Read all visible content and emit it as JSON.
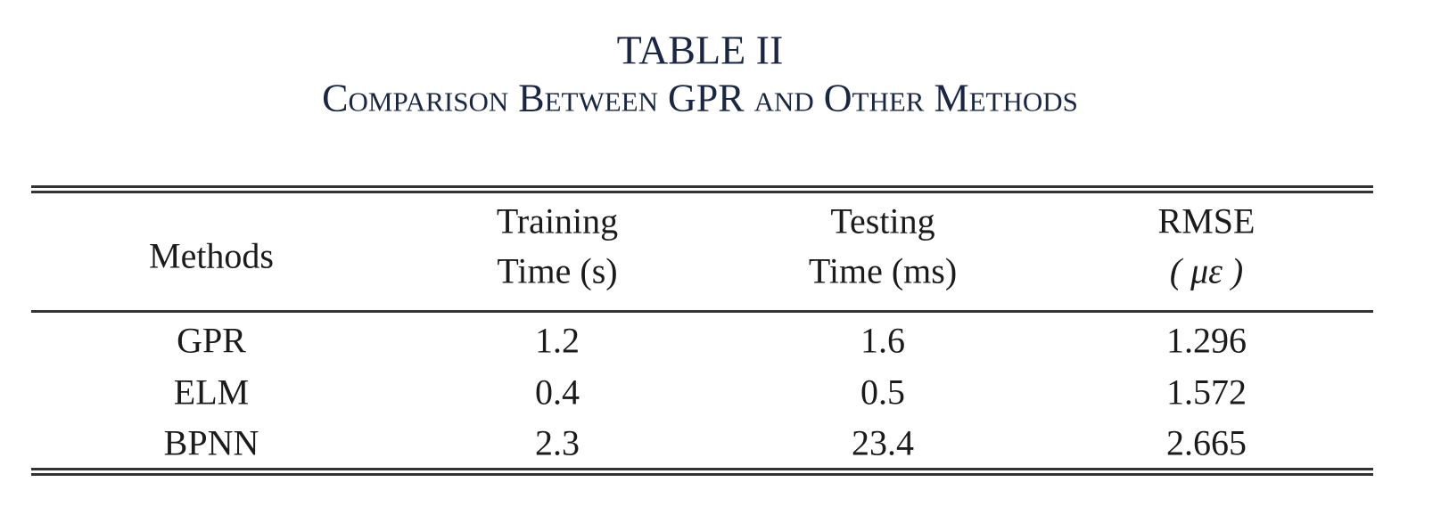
{
  "header": {
    "title": "TABLE II",
    "caption": "Comparison Between GPR and Other Methods"
  },
  "table": {
    "columns": [
      [
        "Methods"
      ],
      [
        "Training",
        "Time (s)"
      ],
      [
        "Testing",
        "Time (ms)"
      ],
      [
        "RMSE",
        "( με )"
      ]
    ],
    "rows": [
      [
        "GPR",
        "1.2",
        "1.6",
        "1.296"
      ],
      [
        "ELM",
        "0.4",
        "0.5",
        "1.572"
      ],
      [
        "BPNN",
        "2.3",
        "23.4",
        "2.665"
      ]
    ]
  }
}
